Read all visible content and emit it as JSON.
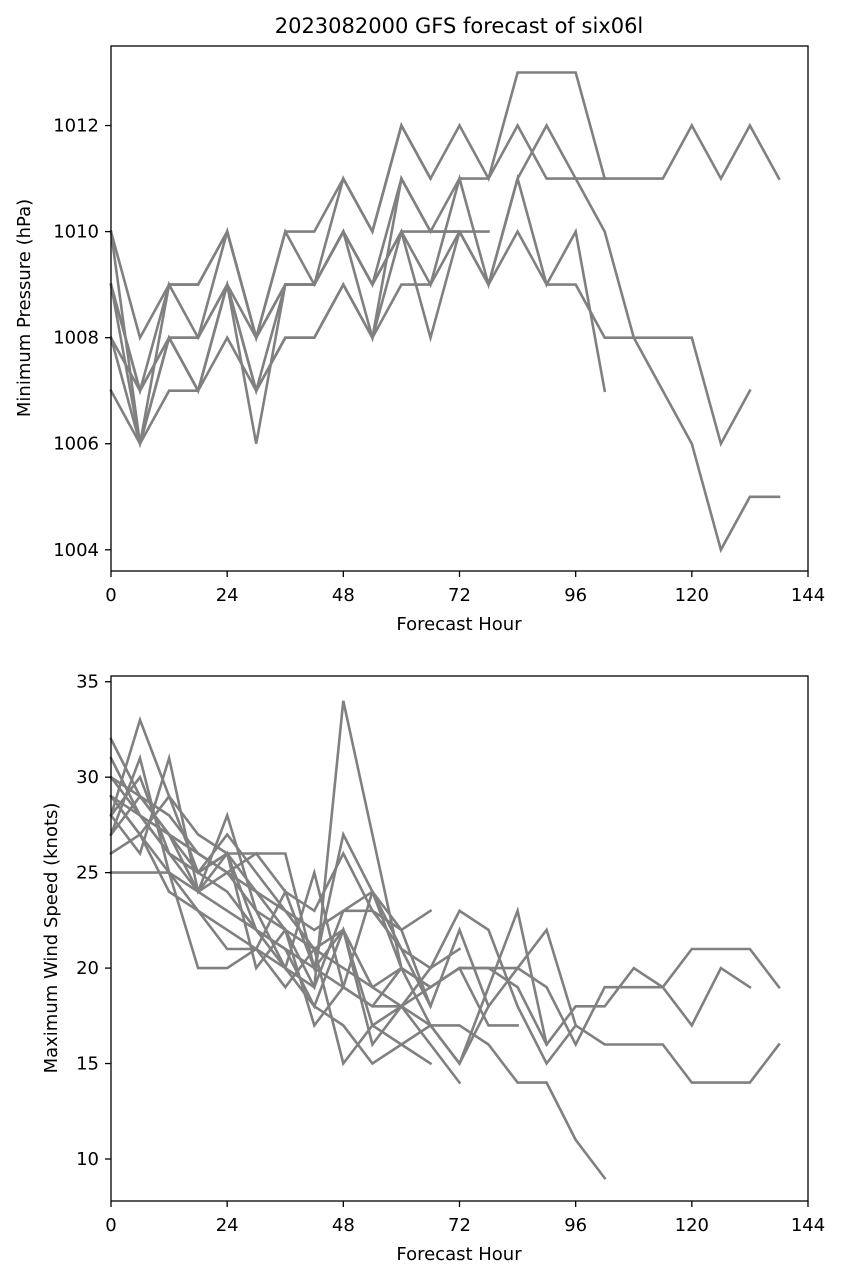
{
  "chart_data": [
    {
      "type": "line",
      "title": "2023082000 GFS forecast of six06l",
      "xlabel": "Forecast Hour",
      "ylabel": "Minimum Pressure (hPa)",
      "xlim": [
        0,
        144
      ],
      "ylim": [
        1003.6,
        1013.5
      ],
      "xticks": [
        0,
        24,
        48,
        72,
        96,
        120,
        144
      ],
      "yticks": [
        1004,
        1006,
        1008,
        1010,
        1012
      ],
      "line_color": "#808080",
      "grid": false,
      "series": [
        {
          "x": [
            0,
            6,
            12,
            18,
            24,
            30,
            36,
            42,
            48,
            54,
            60,
            66,
            72,
            78,
            84,
            90,
            96,
            102,
            108,
            114,
            120,
            126,
            132,
            138
          ],
          "y": [
            1010,
            1008,
            1009,
            1009,
            1010,
            1008,
            1010,
            1010,
            1011,
            1010,
            1012,
            1011,
            1012,
            1011,
            1013,
            1013,
            1013,
            1011,
            1011,
            1011,
            1012,
            1011,
            1012,
            1011
          ]
        },
        {
          "x": [
            0,
            6,
            12,
            18,
            24,
            30,
            36,
            42,
            48,
            54,
            60,
            66,
            72,
            78,
            84,
            90,
            96,
            102,
            108,
            114,
            120,
            126,
            132,
            138
          ],
          "y": [
            1009,
            1007,
            1009,
            1009,
            1010,
            1008,
            1010,
            1009,
            1010,
            1009,
            1011,
            1010,
            1011,
            1011,
            1012,
            1011,
            1011,
            1010,
            1008,
            1007,
            1006,
            1004,
            1005,
            1005
          ]
        },
        {
          "x": [
            0,
            6,
            12,
            18,
            24,
            30,
            36,
            42,
            48,
            54,
            60,
            66,
            72,
            78,
            84,
            90,
            96,
            102,
            108,
            114,
            120,
            126,
            132
          ],
          "y": [
            1008,
            1006,
            1008,
            1008,
            1010,
            1008,
            1009,
            1009,
            1010,
            1008,
            1010,
            1010,
            1010,
            1009,
            1010,
            1009,
            1009,
            1008,
            1008,
            1008,
            1008,
            1006,
            1007
          ]
        },
        {
          "x": [
            0,
            6,
            12,
            18,
            24,
            30,
            36,
            42,
            48,
            54,
            60,
            66,
            72,
            78,
            84,
            90,
            96,
            102
          ],
          "y": [
            1009,
            1007,
            1008,
            1008,
            1009,
            1007,
            1009,
            1009,
            1010,
            1009,
            1010,
            1009,
            1011,
            1009,
            1011,
            1009,
            1010,
            1007
          ]
        },
        {
          "x": [
            0,
            6,
            12,
            18,
            24,
            30,
            36,
            42,
            48,
            54,
            60,
            66,
            72,
            78,
            84,
            90,
            96,
            102
          ],
          "y": [
            1010,
            1006,
            1008,
            1007,
            1009,
            1007,
            1008,
            1008,
            1009,
            1008,
            1011,
            1010,
            1010,
            1009,
            1011,
            1012,
            1011,
            1011
          ]
        },
        {
          "x": [
            0,
            6,
            12,
            18,
            24,
            30,
            36,
            42,
            48,
            54,
            60,
            66,
            72,
            78
          ],
          "y": [
            1007,
            1006,
            1007,
            1007,
            1008,
            1007,
            1008,
            1008,
            1009,
            1008,
            1009,
            1009,
            1010,
            1010
          ]
        },
        {
          "x": [
            0,
            6,
            12,
            18,
            24,
            30,
            36,
            42,
            48,
            54,
            60,
            66,
            72
          ],
          "y": [
            1008,
            1007,
            1008,
            1007,
            1009,
            1006,
            1009,
            1009,
            1010,
            1009,
            1010,
            1008,
            1010
          ]
        },
        {
          "x": [
            0,
            6,
            12,
            18,
            24,
            30,
            36,
            42,
            48,
            54,
            60,
            66
          ],
          "y": [
            1009,
            1006,
            1009,
            1008,
            1009,
            1008,
            1009,
            1009,
            1011,
            1010,
            1012,
            1011
          ]
        }
      ]
    },
    {
      "type": "line",
      "title": "",
      "xlabel": "Forecast Hour",
      "ylabel": "Maximum Wind Speed (knots)",
      "xlim": [
        0,
        144
      ],
      "ylim": [
        7.8,
        35.3
      ],
      "xticks": [
        0,
        24,
        48,
        72,
        96,
        120,
        144
      ],
      "yticks": [
        10,
        15,
        20,
        25,
        30,
        35
      ],
      "line_color": "#808080",
      "grid": false,
      "series": [
        {
          "x": [
            0,
            6,
            12,
            18,
            24,
            30,
            36,
            42,
            48,
            54,
            60,
            66,
            72,
            78,
            84,
            90,
            96,
            102,
            108,
            114,
            120,
            126,
            132,
            138
          ],
          "y": [
            30,
            29,
            27,
            25,
            26,
            24,
            23,
            21,
            20,
            19,
            20,
            19,
            20,
            20,
            20,
            19,
            16,
            19,
            19,
            19,
            21,
            21,
            21,
            19
          ]
        },
        {
          "x": [
            0,
            6,
            12,
            18,
            24,
            30,
            36,
            42,
            48,
            54,
            60,
            66,
            72,
            78,
            84,
            90,
            96,
            102,
            108,
            114,
            120,
            126,
            132
          ],
          "y": [
            28,
            30,
            26,
            25,
            24,
            22,
            21,
            20,
            19,
            18,
            18,
            19,
            20,
            20,
            19,
            16,
            18,
            18,
            20,
            19,
            17,
            20,
            19
          ]
        },
        {
          "x": [
            0,
            6,
            12,
            18,
            24,
            30,
            36,
            42,
            48,
            54,
            60,
            66,
            72,
            78,
            84,
            90,
            96,
            102,
            108,
            114,
            120,
            126,
            132,
            138
          ],
          "y": [
            29,
            28,
            27,
            24,
            23,
            22,
            20,
            18,
            17,
            15,
            16,
            17,
            15,
            18,
            20,
            22,
            17,
            16,
            16,
            16,
            14,
            14,
            14,
            16
          ]
        },
        {
          "x": [
            0,
            6,
            12,
            18,
            24,
            30,
            36,
            42,
            48,
            54,
            60,
            66,
            72,
            78,
            84,
            90,
            96,
            102
          ],
          "y": [
            27,
            29,
            28,
            26,
            25,
            24,
            22,
            21,
            22,
            19,
            18,
            17,
            17,
            16,
            14,
            14,
            11,
            9
          ]
        },
        {
          "x": [
            0,
            6,
            12,
            18,
            24,
            30,
            36,
            42,
            48,
            54,
            60,
            66,
            72,
            78,
            84,
            90,
            96
          ],
          "y": [
            31,
            28,
            26,
            24,
            25,
            23,
            22,
            19,
            23,
            24,
            21,
            20,
            23,
            22,
            18,
            15,
            17
          ]
        },
        {
          "x": [
            0,
            6,
            12,
            18,
            24,
            30,
            36,
            42,
            48,
            54,
            60,
            66,
            72,
            78,
            84
          ],
          "y": [
            26,
            27,
            24,
            23,
            22,
            21,
            20,
            19,
            34,
            27,
            20,
            19,
            20,
            17,
            17
          ]
        },
        {
          "x": [
            0,
            6,
            12,
            18,
            24,
            30,
            36,
            42,
            48,
            54,
            60,
            66,
            72,
            78
          ],
          "y": [
            32,
            29,
            27,
            26,
            25,
            26,
            24,
            23,
            26,
            23,
            21,
            18,
            22,
            18
          ]
        },
        {
          "x": [
            0,
            6,
            12,
            18,
            24,
            30,
            36,
            42,
            48,
            54,
            60,
            66,
            72
          ],
          "y": [
            28,
            33,
            29,
            27,
            26,
            22,
            21,
            18,
            22,
            17,
            18,
            16,
            14
          ]
        },
        {
          "x": [
            0,
            6,
            12,
            18,
            24,
            30,
            36,
            42,
            48,
            54,
            60,
            66,
            72,
            78,
            84,
            90
          ],
          "y": [
            29,
            27,
            25,
            20,
            20,
            21,
            24,
            20,
            27,
            24,
            20,
            17,
            15,
            19,
            23,
            16
          ]
        },
        {
          "x": [
            0,
            6,
            12,
            18,
            24,
            30,
            36,
            42,
            48,
            54,
            60,
            66
          ],
          "y": [
            30,
            28,
            26,
            25,
            27,
            25,
            23,
            22,
            23,
            23,
            22,
            18
          ]
        },
        {
          "x": [
            0,
            6,
            12,
            18,
            24,
            30,
            36,
            42,
            48,
            54,
            60,
            66
          ],
          "y": [
            25,
            25,
            25,
            23,
            21,
            21,
            19,
            21,
            15,
            17,
            16,
            15
          ]
        },
        {
          "x": [
            0,
            6,
            12,
            18,
            24,
            30,
            36,
            42,
            48,
            54,
            60
          ],
          "y": [
            27,
            31,
            25,
            24,
            28,
            23,
            20,
            25,
            19,
            18,
            20
          ]
        },
        {
          "x": [
            0,
            6,
            12,
            18,
            24,
            30,
            36,
            42,
            48,
            54,
            60,
            66
          ],
          "y": [
            28,
            26,
            31,
            24,
            26,
            20,
            22,
            17,
            19,
            24,
            22,
            23
          ]
        },
        {
          "x": [
            0,
            6,
            12,
            18,
            24,
            30,
            36,
            42,
            48,
            54,
            60,
            66,
            72
          ],
          "y": [
            29,
            27,
            29,
            25,
            26,
            26,
            26,
            20,
            22,
            16,
            18,
            20,
            21
          ]
        }
      ]
    }
  ]
}
